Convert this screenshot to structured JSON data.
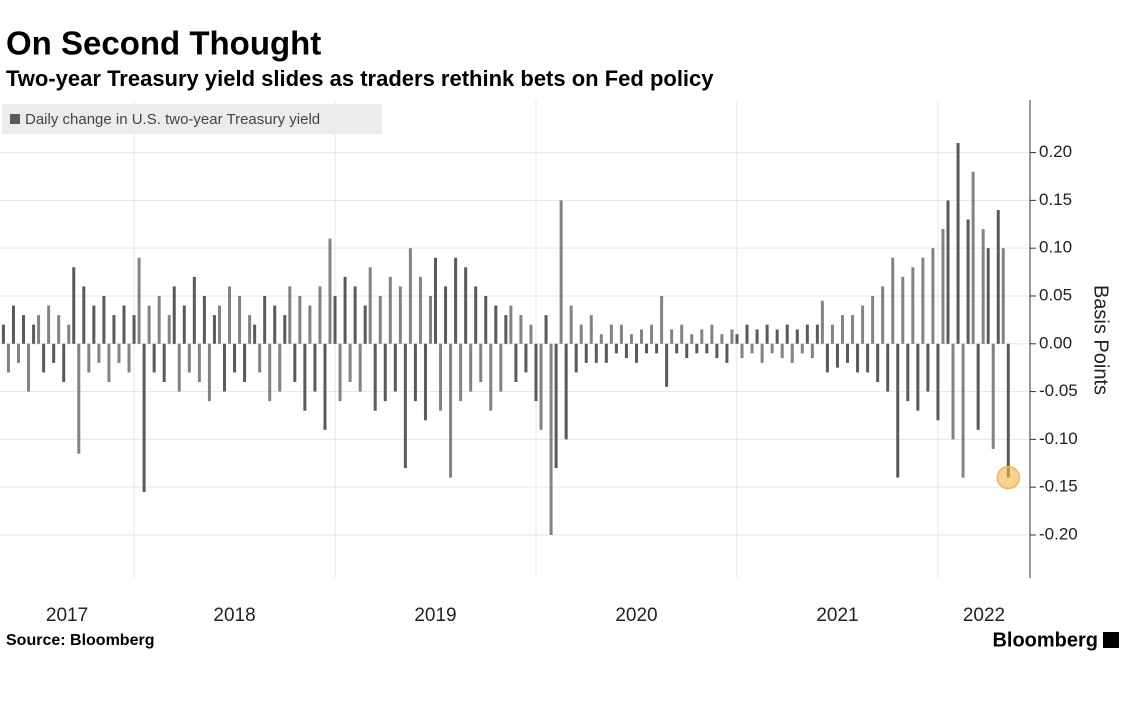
{
  "chart_data": {
    "type": "bar",
    "title": "On Second Thought",
    "subtitle": "Two-year Treasury yield slides as traders rethink bets on Fed policy",
    "y_label": "Basis Points",
    "source": "Source: Bloomberg",
    "brand": "Bloomberg",
    "highlight_color": "#f5b54a",
    "grid": true,
    "xlim": [
      2017.333,
      2022.458
    ],
    "xticks": [
      2017,
      2018,
      2019,
      2020,
      2021,
      2022
    ],
    "ylim": [
      -0.245,
      0.255
    ],
    "yticks": [
      {
        "value": -0.2,
        "label": "-0.20"
      },
      -0.15,
      {
        "value": -0.1,
        "label": "-0.10"
      },
      -0.05,
      {
        "value": 0,
        "label": "0.00"
      },
      0.05,
      {
        "value": 0.1,
        "label": "0.10"
      },
      0.15,
      {
        "value": 0.2,
        "label": "0.20"
      }
    ],
    "series": [
      {
        "name": "Daily change in U.S. two-year Treasury yield",
        "color": "#5a5a5a",
        "x": [
          2017.35,
          2017.375,
          2017.4,
          2017.425,
          2017.45,
          2017.475,
          2017.5,
          2017.525,
          2017.55,
          2017.575,
          2017.6,
          2017.625,
          2017.65,
          2017.675,
          2017.7,
          2017.725,
          2017.75,
          2017.775,
          2017.8,
          2017.825,
          2017.85,
          2017.875,
          2017.9,
          2017.925,
          2017.95,
          2017.975,
          2018,
          2018.025,
          2018.05,
          2018.075,
          2018.1,
          2018.125,
          2018.15,
          2018.175,
          2018.2,
          2018.225,
          2018.25,
          2018.275,
          2018.3,
          2018.325,
          2018.35,
          2018.375,
          2018.4,
          2018.425,
          2018.45,
          2018.475,
          2018.5,
          2018.525,
          2018.55,
          2018.575,
          2018.6,
          2018.625,
          2018.65,
          2018.675,
          2018.7,
          2018.725,
          2018.75,
          2018.775,
          2018.8,
          2018.825,
          2018.85,
          2018.875,
          2018.9,
          2018.925,
          2018.95,
          2018.975,
          2019,
          2019.025,
          2019.05,
          2019.075,
          2019.1,
          2019.125,
          2019.15,
          2019.175,
          2019.2,
          2019.225,
          2019.25,
          2019.275,
          2019.3,
          2019.325,
          2019.35,
          2019.375,
          2019.4,
          2019.425,
          2019.45,
          2019.475,
          2019.5,
          2019.525,
          2019.55,
          2019.575,
          2019.6,
          2019.625,
          2019.65,
          2019.675,
          2019.7,
          2019.725,
          2019.75,
          2019.775,
          2019.8,
          2019.825,
          2019.85,
          2019.875,
          2019.9,
          2019.925,
          2019.95,
          2019.975,
          2020,
          2020.025,
          2020.05,
          2020.075,
          2020.1,
          2020.125,
          2020.15,
          2020.175,
          2020.2,
          2020.225,
          2020.25,
          2020.275,
          2020.3,
          2020.325,
          2020.35,
          2020.375,
          2020.4,
          2020.425,
          2020.45,
          2020.475,
          2020.5,
          2020.525,
          2020.55,
          2020.575,
          2020.6,
          2020.625,
          2020.65,
          2020.675,
          2020.7,
          2020.725,
          2020.75,
          2020.775,
          2020.8,
          2020.825,
          2020.85,
          2020.875,
          2020.9,
          2020.925,
          2020.95,
          2020.975,
          2021,
          2021.025,
          2021.05,
          2021.075,
          2021.1,
          2021.125,
          2021.15,
          2021.175,
          2021.2,
          2021.225,
          2021.25,
          2021.275,
          2021.3,
          2021.325,
          2021.35,
          2021.375,
          2021.4,
          2021.425,
          2021.45,
          2021.475,
          2021.5,
          2021.525,
          2021.55,
          2021.575,
          2021.6,
          2021.625,
          2021.65,
          2021.675,
          2021.7,
          2021.725,
          2021.75,
          2021.775,
          2021.8,
          2021.825,
          2021.85,
          2021.875,
          2021.9,
          2021.925,
          2021.95,
          2021.975,
          2022,
          2022.025,
          2022.05,
          2022.075,
          2022.1,
          2022.125,
          2022.15,
          2022.175,
          2022.2,
          2022.225,
          2022.25,
          2022.275,
          2022.3,
          2022.325,
          2022.35
        ],
        "values": [
          0.02,
          -0.03,
          0.04,
          -0.02,
          0.03,
          -0.05,
          0.02,
          0.03,
          -0.03,
          0.04,
          -0.02,
          0.03,
          -0.04,
          0.02,
          0.08,
          -0.115,
          0.06,
          -0.03,
          0.04,
          -0.02,
          0.05,
          -0.04,
          0.03,
          -0.02,
          0.04,
          -0.03,
          0.03,
          0.09,
          -0.155,
          0.04,
          -0.03,
          0.05,
          -0.04,
          0.03,
          0.06,
          -0.05,
          0.04,
          -0.03,
          0.07,
          -0.04,
          0.05,
          -0.06,
          0.03,
          0.04,
          -0.05,
          0.06,
          -0.03,
          0.05,
          -0.04,
          0.03,
          0.02,
          -0.03,
          0.05,
          -0.06,
          0.04,
          -0.05,
          0.03,
          0.06,
          -0.04,
          0.05,
          -0.07,
          0.04,
          -0.05,
          0.06,
          -0.09,
          0.11,
          0.05,
          -0.06,
          0.07,
          -0.04,
          0.06,
          -0.05,
          0.04,
          0.08,
          -0.07,
          0.05,
          -0.06,
          0.07,
          -0.05,
          0.06,
          -0.13,
          0.1,
          -0.06,
          0.07,
          -0.08,
          0.05,
          0.09,
          -0.07,
          0.06,
          -0.14,
          0.09,
          -0.06,
          0.08,
          -0.05,
          0.06,
          -0.04,
          0.05,
          -0.07,
          0.04,
          -0.05,
          0.03,
          0.04,
          -0.04,
          0.03,
          -0.03,
          0.02,
          -0.06,
          -0.09,
          0.03,
          -0.2,
          -0.13,
          0.15,
          -0.1,
          0.04,
          -0.03,
          0.02,
          -0.02,
          0.03,
          -0.02,
          0.01,
          -0.02,
          0.02,
          -0.01,
          0.02,
          -0.015,
          0.01,
          -0.02,
          0.015,
          -0.01,
          0.02,
          -0.01,
          0.05,
          -0.045,
          0.015,
          -0.01,
          0.02,
          -0.015,
          0.01,
          -0.01,
          0.015,
          -0.01,
          0.02,
          -0.015,
          0.01,
          -0.02,
          0.015,
          0.01,
          -0.015,
          0.02,
          -0.01,
          0.015,
          -0.02,
          0.02,
          -0.01,
          0.015,
          -0.015,
          0.02,
          -0.02,
          0.015,
          -0.01,
          0.02,
          -0.015,
          0.02,
          0.045,
          -0.03,
          0.02,
          -0.025,
          0.03,
          -0.02,
          0.03,
          -0.03,
          0.04,
          -0.03,
          0.05,
          -0.04,
          0.06,
          -0.05,
          0.09,
          -0.14,
          0.07,
          -0.06,
          0.08,
          -0.07,
          0.09,
          -0.05,
          0.1,
          -0.08,
          0.12,
          0.15,
          -0.1,
          0.21,
          -0.14,
          0.13,
          0.18,
          -0.09,
          0.12,
          0.1,
          -0.11,
          0.14,
          0.1,
          -0.14
        ]
      }
    ]
  }
}
